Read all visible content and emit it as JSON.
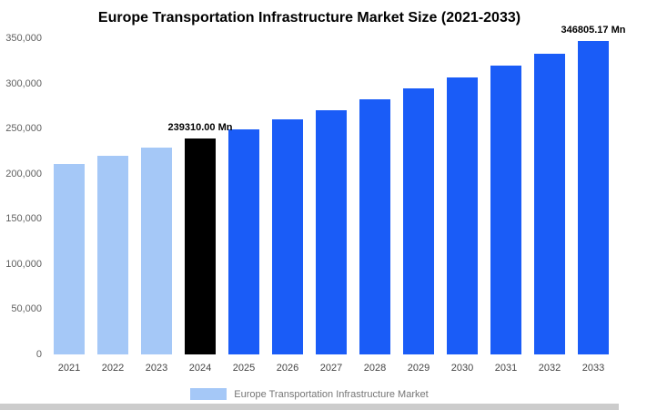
{
  "chart_data": {
    "type": "bar",
    "title": "Europe Transportation Infrastructure Market Size (2021-2033)",
    "categories": [
      "2021",
      "2022",
      "2023",
      "2024",
      "2025",
      "2026",
      "2027",
      "2028",
      "2029",
      "2030",
      "2031",
      "2032",
      "2033"
    ],
    "values": [
      210500,
      219500,
      229000,
      239310,
      249400,
      259900,
      270800,
      282200,
      294100,
      306500,
      319400,
      332900,
      346805.17
    ],
    "unit": "Mn",
    "xlabel": "",
    "ylabel": "",
    "ylim": [
      0,
      350000
    ],
    "ytick_step": 50000,
    "ytick_labels": [
      "0",
      "50,000",
      "100,000",
      "150,000",
      "200,000",
      "250,000",
      "300,000",
      "350,000"
    ],
    "grid": false,
    "legend": {
      "position": "bottom",
      "label": "Europe Transportation Infrastructure Market"
    },
    "annotations": [
      {
        "index": 3,
        "text": "239310.00 Mn"
      },
      {
        "index": 12,
        "text": "346805.17 Mn"
      }
    ],
    "bar_colors": {
      "historical": "#a5c8f7",
      "current": "#000000",
      "forecast": "#1a5cf7"
    },
    "color_by_index": [
      "historical",
      "historical",
      "historical",
      "current",
      "forecast",
      "forecast",
      "forecast",
      "forecast",
      "forecast",
      "forecast",
      "forecast",
      "forecast",
      "forecast"
    ]
  }
}
